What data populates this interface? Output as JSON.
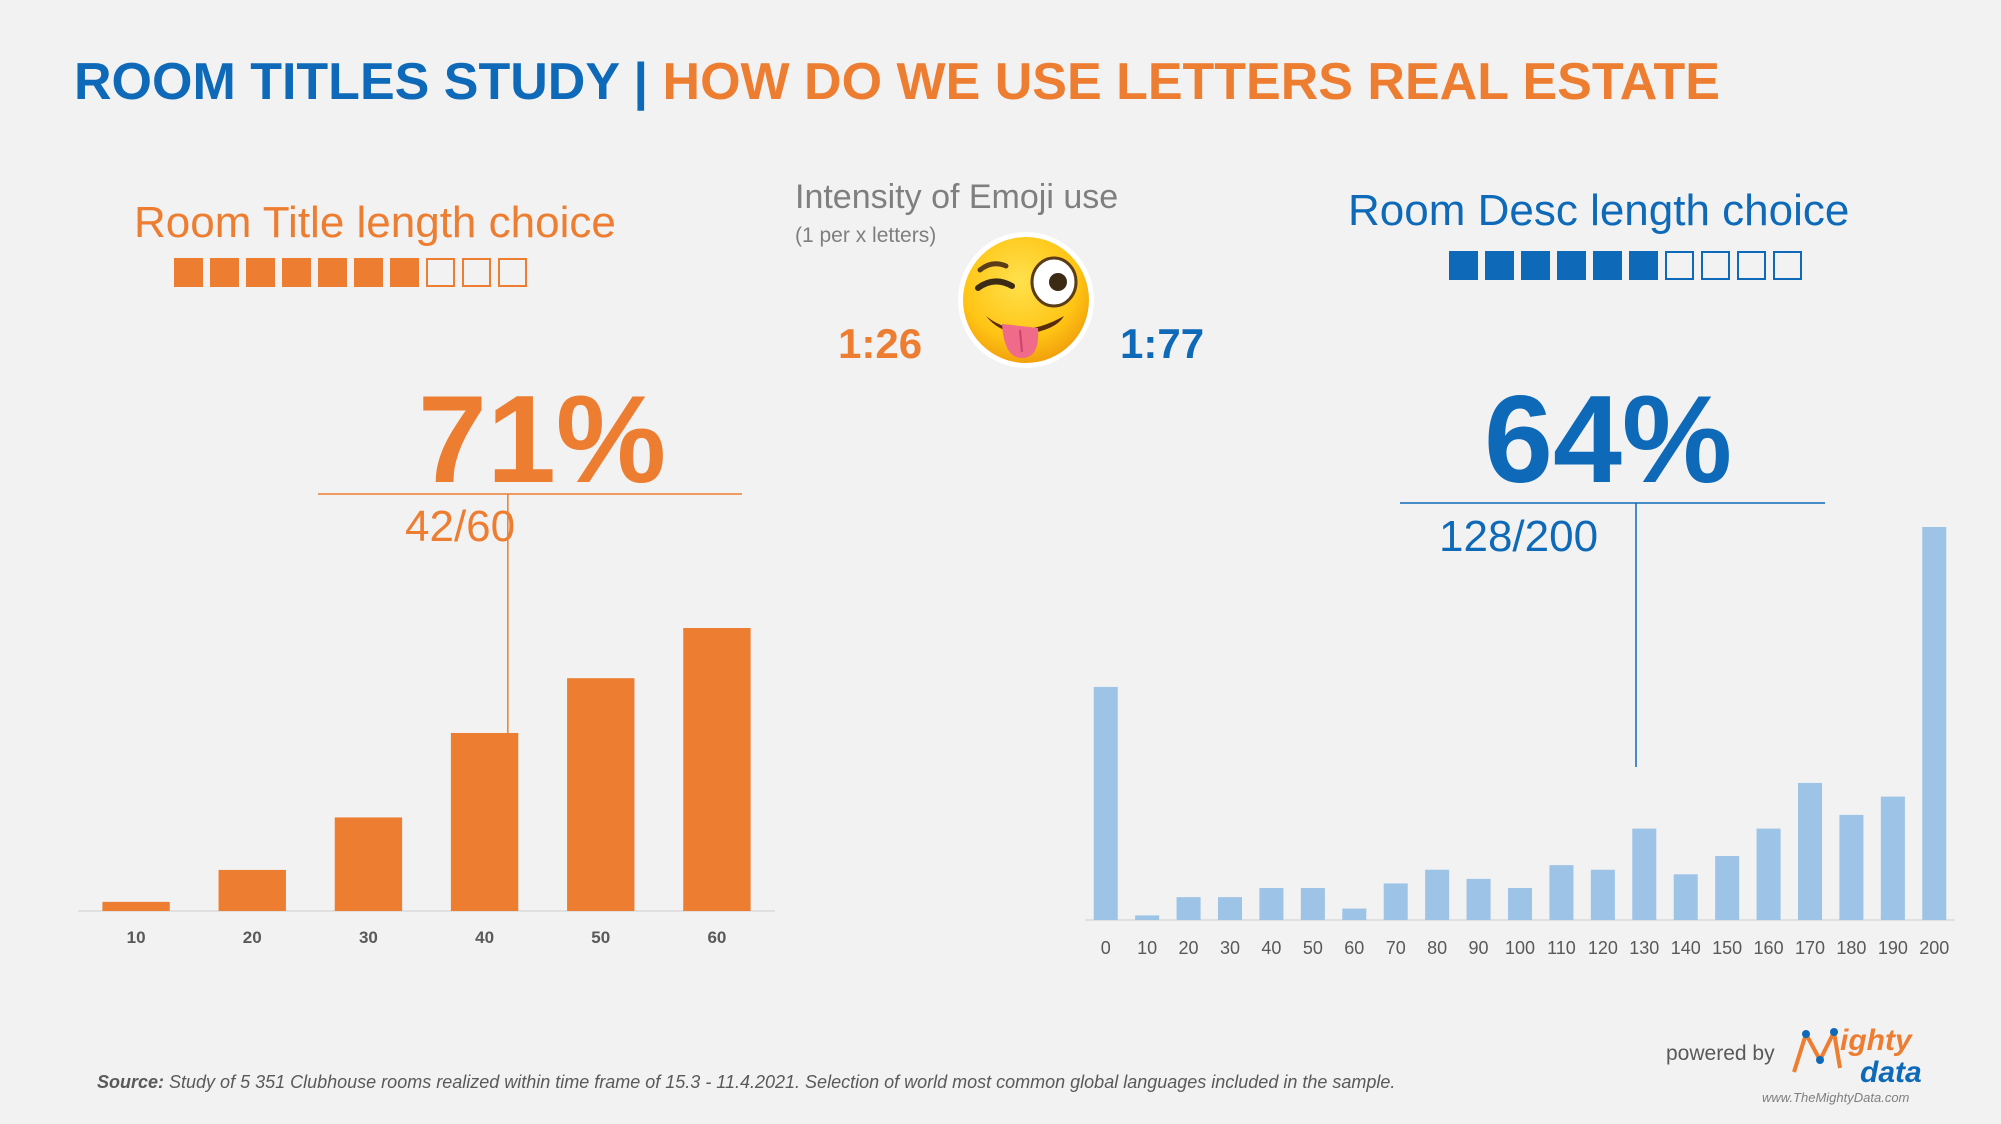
{
  "header": {
    "title_left": "ROOM TITLES STUDY",
    "separator": "|",
    "title_right": "HOW DO WE USE LETTERS REAL ESTATE"
  },
  "left_panel": {
    "title": "Room Title length choice",
    "squares_filled": 7,
    "squares_total": 10,
    "percent": "71%",
    "ratio": "42/60"
  },
  "emoji_panel": {
    "title": "Intensity of Emoji use",
    "subtitle": "(1 per x letters)",
    "icon": "winking-face-with-tongue-icon",
    "left_value": "1:26",
    "right_value": "1:77"
  },
  "right_panel": {
    "title": "Room Desc length choice",
    "squares_filled": 6,
    "squares_total": 10,
    "percent": "64%",
    "ratio": "128/200"
  },
  "colors": {
    "orange": "#ed7d31",
    "blue": "#0e6ab8",
    "light_blue": "#9dc3e6",
    "background": "#f2f2f2"
  },
  "chart_data": [
    {
      "type": "bar",
      "categories": [
        "10",
        "20",
        "30",
        "40",
        "50",
        "60"
      ],
      "values": [
        2,
        9,
        20.5,
        39,
        51,
        62
      ],
      "marker_value": 42,
      "title": "",
      "xlabel": "",
      "ylabel": "",
      "ylim": [
        0,
        62
      ],
      "grid": false
    },
    {
      "type": "bar",
      "categories": [
        "0",
        "10",
        "20",
        "30",
        "40",
        "50",
        "60",
        "70",
        "80",
        "90",
        "100",
        "110",
        "120",
        "130",
        "140",
        "150",
        "160",
        "170",
        "180",
        "190",
        "200"
      ],
      "values": [
        51,
        1,
        5,
        5,
        7,
        7,
        2.5,
        8,
        11,
        9,
        7,
        12,
        11,
        20,
        10,
        14,
        20,
        30,
        23,
        27,
        86
      ],
      "marker_value": 128,
      "title": "",
      "xlabel": "",
      "ylabel": "",
      "ylim": [
        0,
        86
      ],
      "grid": false
    }
  ],
  "footer": {
    "source_label": "Source:",
    "source_text": " Study of 5 351 Clubhouse rooms realized within time frame of 15.3 - 11.4.2021. Selection of world most common global languages included in the sample.",
    "powered_by": "powered by",
    "logo_word1": "ighty",
    "logo_word2": "data",
    "logo_letter": "M",
    "logo_url": "www.TheMightyData.com"
  }
}
